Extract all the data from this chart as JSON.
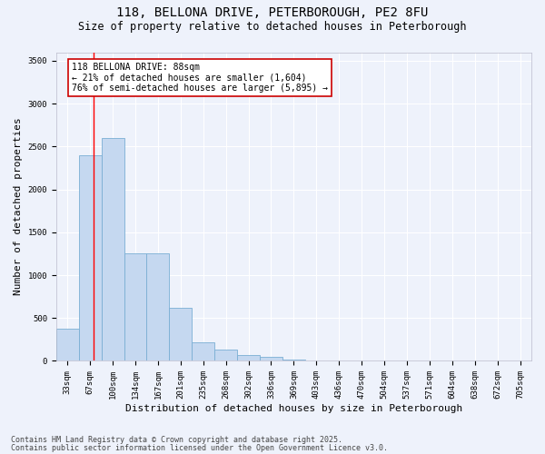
{
  "title1": "118, BELLONA DRIVE, PETERBOROUGH, PE2 8FU",
  "title2": "Size of property relative to detached houses in Peterborough",
  "xlabel": "Distribution of detached houses by size in Peterborough",
  "ylabel": "Number of detached properties",
  "bar_color": "#c5d8f0",
  "bar_edge_color": "#7aafd4",
  "categories": [
    "33sqm",
    "67sqm",
    "100sqm",
    "134sqm",
    "167sqm",
    "201sqm",
    "235sqm",
    "268sqm",
    "302sqm",
    "336sqm",
    "369sqm",
    "403sqm",
    "436sqm",
    "470sqm",
    "504sqm",
    "537sqm",
    "571sqm",
    "604sqm",
    "638sqm",
    "672sqm",
    "705sqm"
  ],
  "values": [
    380,
    2400,
    2600,
    1250,
    1250,
    620,
    215,
    130,
    70,
    50,
    20,
    5,
    10,
    3,
    2,
    1,
    0,
    0,
    0,
    0,
    0
  ],
  "ylim": [
    0,
    3600
  ],
  "yticks": [
    0,
    500,
    1000,
    1500,
    2000,
    2500,
    3000,
    3500
  ],
  "annotation_text": "118 BELLONA DRIVE: 88sqm\n← 21% of detached houses are smaller (1,604)\n76% of semi-detached houses are larger (5,895) →",
  "annotation_box_color": "#ffffff",
  "annotation_box_edge_color": "#cc0000",
  "footer1": "Contains HM Land Registry data © Crown copyright and database right 2025.",
  "footer2": "Contains public sector information licensed under the Open Government Licence v3.0.",
  "background_color": "#eef2fb",
  "grid_color": "#ffffff",
  "title1_fontsize": 10,
  "title2_fontsize": 8.5,
  "axis_label_fontsize": 8,
  "tick_fontsize": 6.5,
  "footer_fontsize": 6,
  "annotation_fontsize": 7
}
